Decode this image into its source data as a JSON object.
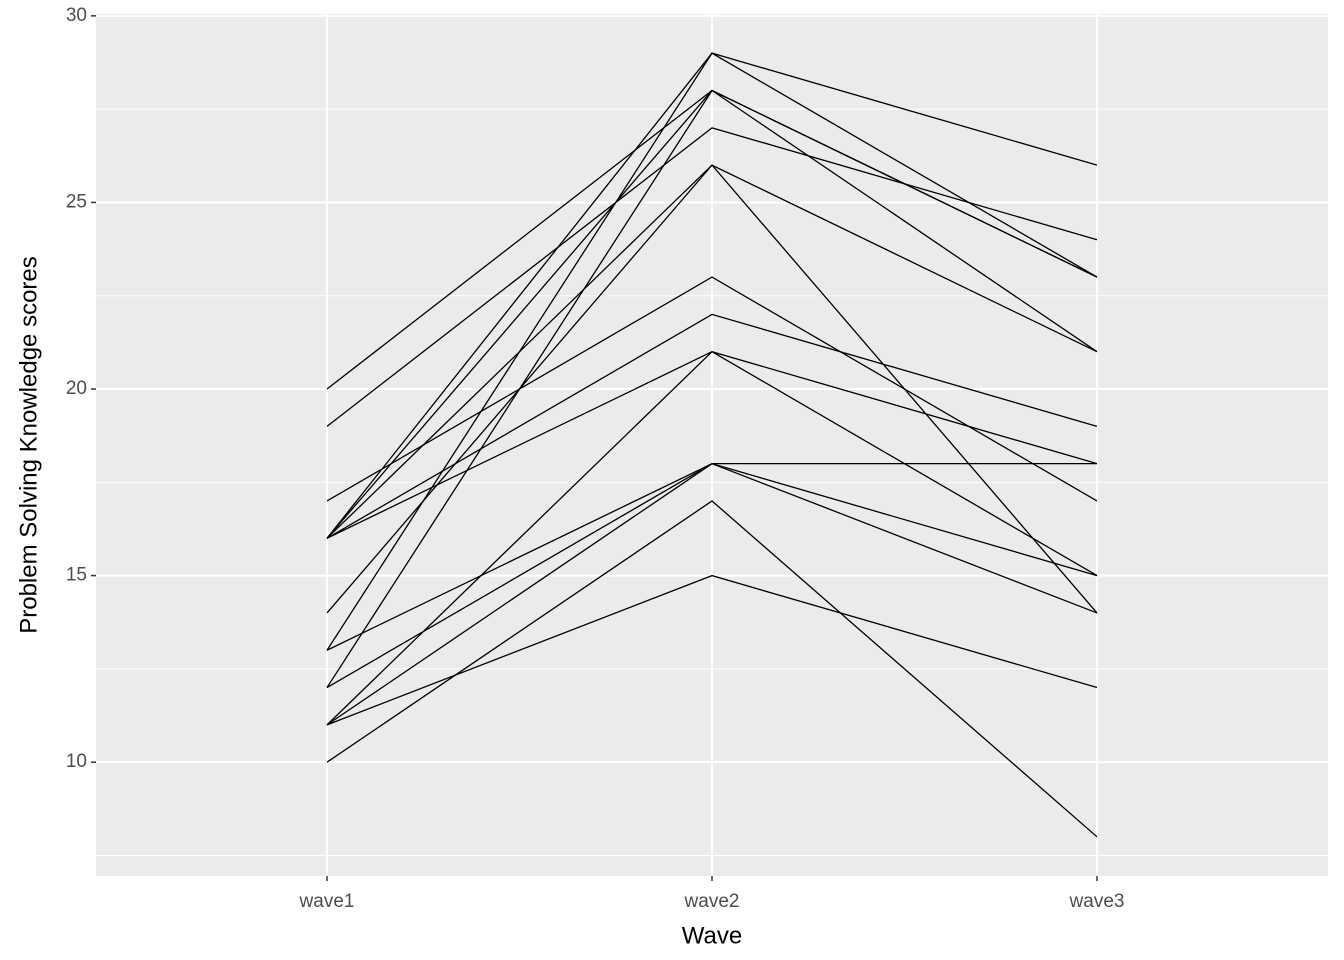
{
  "chart_data": {
    "type": "line",
    "x_label": "Wave",
    "y_label": "Problem Solving Knowledge scores",
    "categories": [
      "wave1",
      "wave2",
      "wave3"
    ],
    "ylim": [
      6.95,
      30.05
    ],
    "yticks": [
      10,
      15,
      20,
      25,
      30
    ],
    "grid": true,
    "series": [
      {
        "color": "#000000",
        "values": [
          20,
          28,
          23
        ]
      },
      {
        "color": "#000000",
        "values": [
          19,
          27,
          24
        ]
      },
      {
        "color": "#000000",
        "values": [
          17,
          23,
          17
        ]
      },
      {
        "color": "#000000",
        "values": [
          16,
          29,
          26
        ]
      },
      {
        "color": "#000000",
        "values": [
          16,
          28,
          21
        ]
      },
      {
        "color": "#000000",
        "values": [
          16,
          26,
          21
        ]
      },
      {
        "color": "#000000",
        "values": [
          16,
          22,
          19
        ]
      },
      {
        "color": "#000000",
        "values": [
          16,
          21,
          18
        ]
      },
      {
        "color": "#000000",
        "values": [
          14,
          26,
          14
        ]
      },
      {
        "color": "#000000",
        "values": [
          13,
          29,
          23
        ]
      },
      {
        "color": "#000000",
        "values": [
          13,
          18,
          15
        ]
      },
      {
        "color": "#000000",
        "values": [
          12,
          28,
          23
        ]
      },
      {
        "color": "#000000",
        "values": [
          12,
          18,
          14
        ]
      },
      {
        "color": "#000000",
        "values": [
          11,
          21,
          15
        ]
      },
      {
        "color": "#000000",
        "values": [
          11,
          18,
          18
        ]
      },
      {
        "color": "#000000",
        "values": [
          11,
          15,
          12
        ]
      },
      {
        "color": "#000000",
        "values": [
          10,
          17,
          8
        ]
      }
    ]
  }
}
